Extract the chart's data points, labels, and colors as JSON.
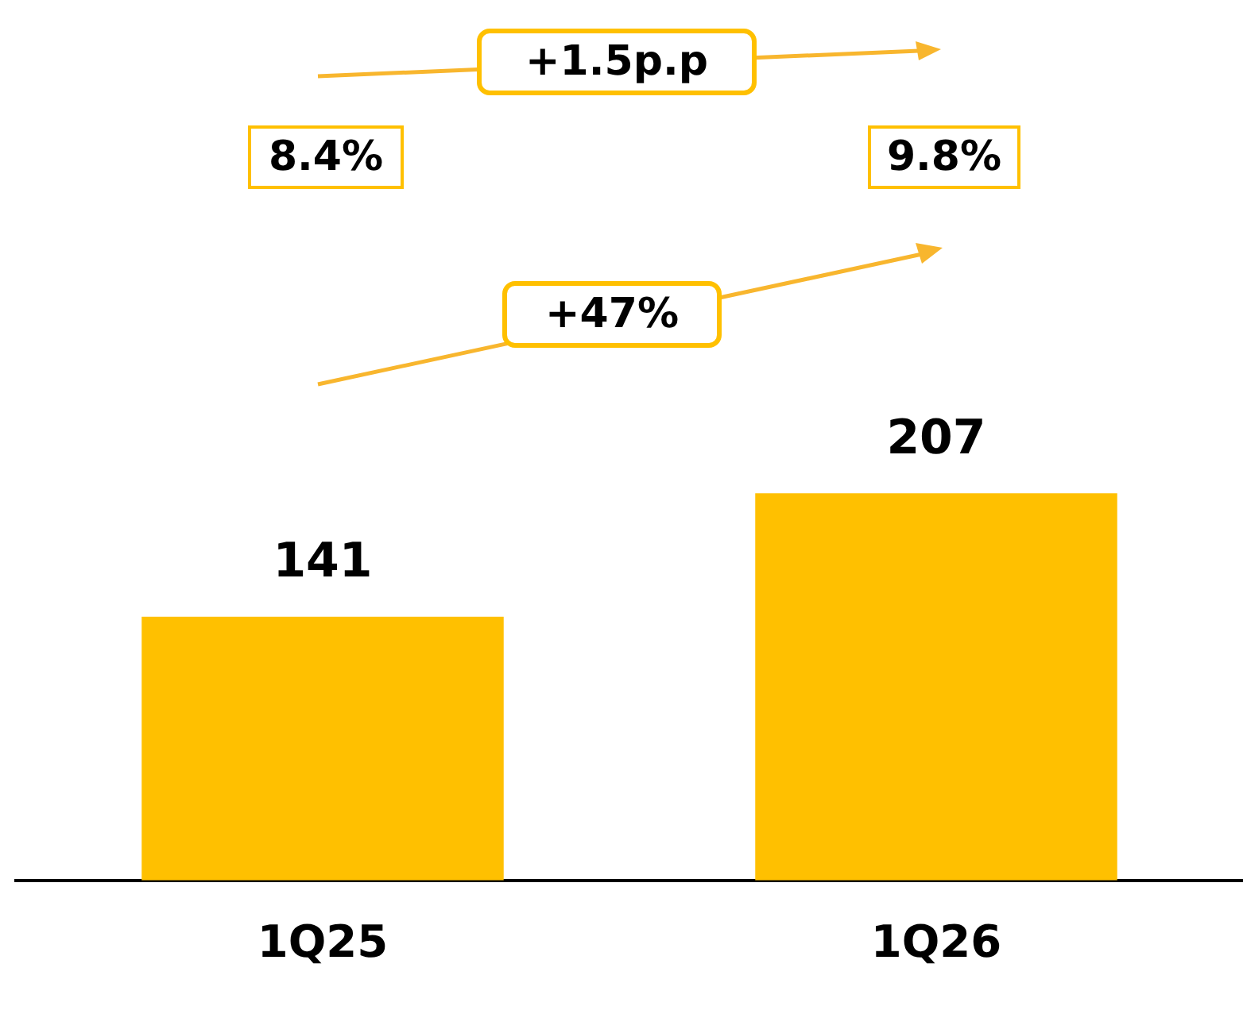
{
  "chart_data": {
    "type": "bar",
    "categories": [
      "1Q25",
      "1Q26"
    ],
    "values": [
      141,
      207
    ],
    "color": "#ffc000",
    "data_labels": true,
    "grid": false,
    "legend": false,
    "tick_labels": "x",
    "annotations": [
      "8.4%",
      "9.8%",
      "+1.5p.p",
      "+47%"
    ]
  }
}
